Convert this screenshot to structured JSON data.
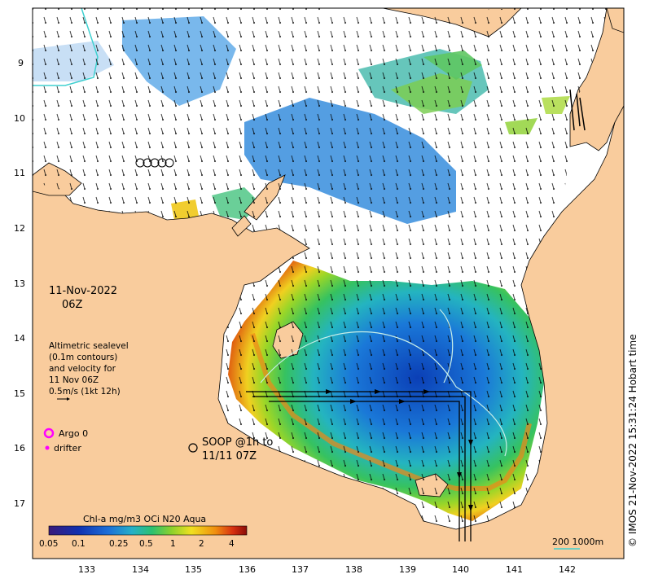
{
  "map": {
    "date_line1": "11-Nov-2022",
    "date_line2": "06Z",
    "legend_lines": [
      "Altimetric sealevel",
      "(0.1m contours)",
      "and velocity for",
      "11 Nov 06Z",
      "0.5m/s (1kt 12h)"
    ],
    "argo_label": "Argo 0",
    "drifter_label": "drifter",
    "soop_line1": "SOOP @1h to",
    "soop_line2": "11/11 07Z",
    "credit": "© IMOS 21-Nov-2022 15:31:24 Hobart time",
    "scale_label": "200  1000m",
    "colorbar_title": "Chl-a mg/m3 OCi N20 Aqua",
    "colorbar_ticks": [
      "0.05",
      "0.1",
      "0.25",
      "0.5",
      "1",
      "2",
      "4"
    ],
    "lon_ticks": [
      "133",
      "134",
      "135",
      "136",
      "137",
      "138",
      "139",
      "140",
      "141",
      "142"
    ],
    "lat_ticks": [
      "9",
      "10",
      "11",
      "12",
      "13",
      "14",
      "15",
      "16",
      "17"
    ],
    "colors": {
      "land": "#f9cc9d",
      "ocean": "#ffffff",
      "argo": "#ff00ff",
      "drifter": "#ff00ff",
      "track": "#000000",
      "contour": "#9fd8d0",
      "river": "#3fd0d0"
    }
  }
}
